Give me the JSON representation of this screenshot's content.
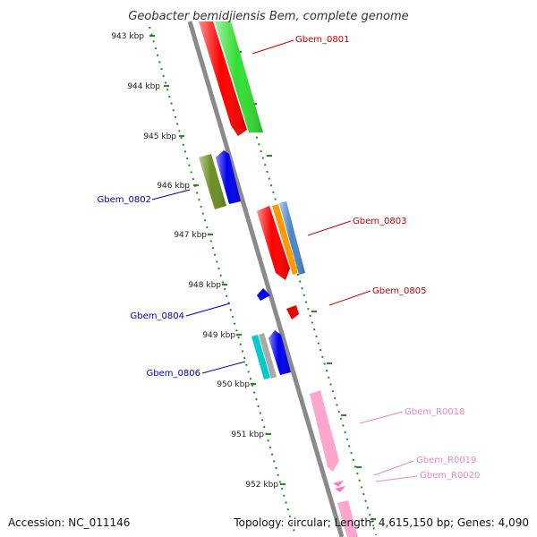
{
  "title": "Geobacter bemidjiensis Bem, complete genome",
  "footer": {
    "accession": "Accession: NC_011146",
    "summary": "Topology: circular; Length: 4,615,150 bp; Genes: 4,090"
  },
  "colors": {
    "backbone": "#8a8a8a",
    "tick": "#228b22",
    "forward_label": "#cc0000",
    "reverse_label": "#0000cc",
    "rna_label": "#ee88bb"
  },
  "ticks": [
    "943 kbp",
    "944 kbp",
    "945 kbp",
    "946 kbp",
    "947 kbp",
    "948 kbp",
    "949 kbp",
    "950 kbp",
    "951 kbp",
    "952 kbp"
  ],
  "labels": [
    {
      "text": "Gbem_0801",
      "color": "#cc0000"
    },
    {
      "text": "Gbem_0802",
      "color": "#0000cc"
    },
    {
      "text": "Gbem_0803",
      "color": "#cc0000"
    },
    {
      "text": "Gbem_0804",
      "color": "#0000cc"
    },
    {
      "text": "Gbem_0805",
      "color": "#cc0000"
    },
    {
      "text": "Gbem_0806",
      "color": "#0000cc"
    },
    {
      "text": "Gbem_R0018",
      "color": "#ee88bb"
    },
    {
      "text": "Gbem_R0019",
      "color": "#ee88bb"
    },
    {
      "text": "Gbem_R0020",
      "color": "#ee88bb"
    }
  ]
}
